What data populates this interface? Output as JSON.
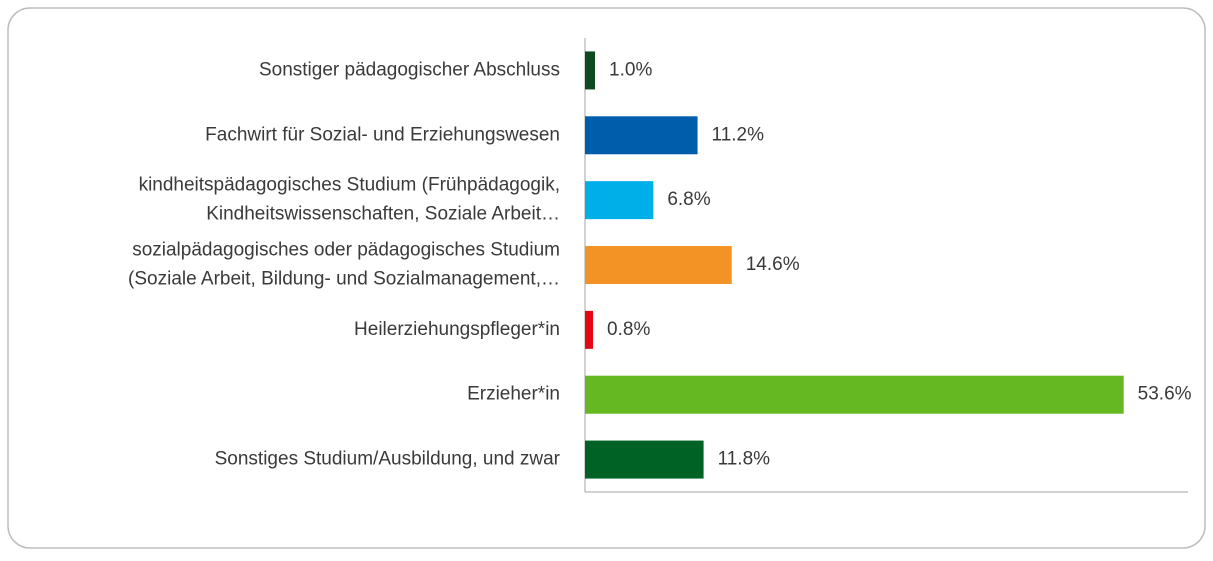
{
  "chart_data": {
    "type": "hbar",
    "categories": [
      [
        "Sonstiger pädagogischer Abschluss"
      ],
      [
        "Fachwirt für Sozial- und Erziehungswesen"
      ],
      [
        "kindheitspädagogisches Studium (Frühpädagogik,",
        "Kindheitswissenschaften, Soziale Arbeit…"
      ],
      [
        "sozialpädagogisches oder pädagogisches Studium",
        "(Soziale Arbeit, Bildung- und Sozialmanagement,…"
      ],
      [
        "Heilerziehungspfleger*in"
      ],
      [
        "Erzieher*in"
      ],
      [
        "Sonstiges Studium/Ausbildung, und zwar"
      ]
    ],
    "values": [
      1.0,
      11.2,
      6.8,
      14.6,
      0.8,
      53.6,
      11.8
    ],
    "value_labels": [
      "1.0%",
      "11.2%",
      "6.8%",
      "14.6%",
      "0.8%",
      "53.6%",
      "11.8%"
    ],
    "colors": [
      "#0d4a1f",
      "#005dab",
      "#00aee8",
      "#f39325",
      "#e30613",
      "#65b822",
      "#006325"
    ],
    "xlim": [
      0,
      60
    ]
  }
}
